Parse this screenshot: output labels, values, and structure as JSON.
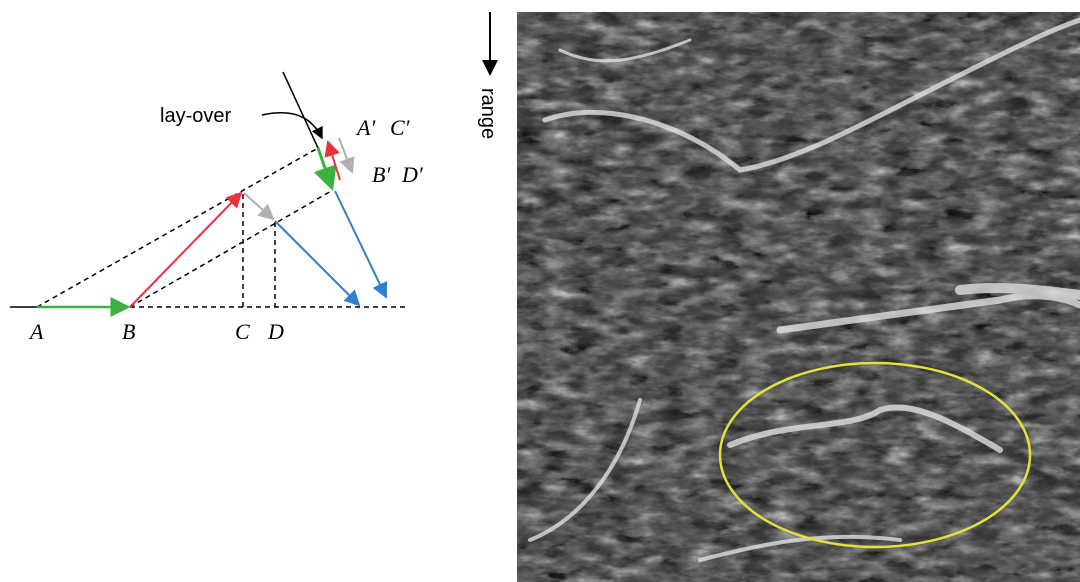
{
  "diagram": {
    "annotation": "lay-over",
    "ground_points": [
      "A",
      "B",
      "C",
      "D"
    ],
    "image_points": [
      "A′",
      "C′",
      "B′",
      "D′"
    ]
  },
  "image": {
    "direction_label": "range"
  }
}
